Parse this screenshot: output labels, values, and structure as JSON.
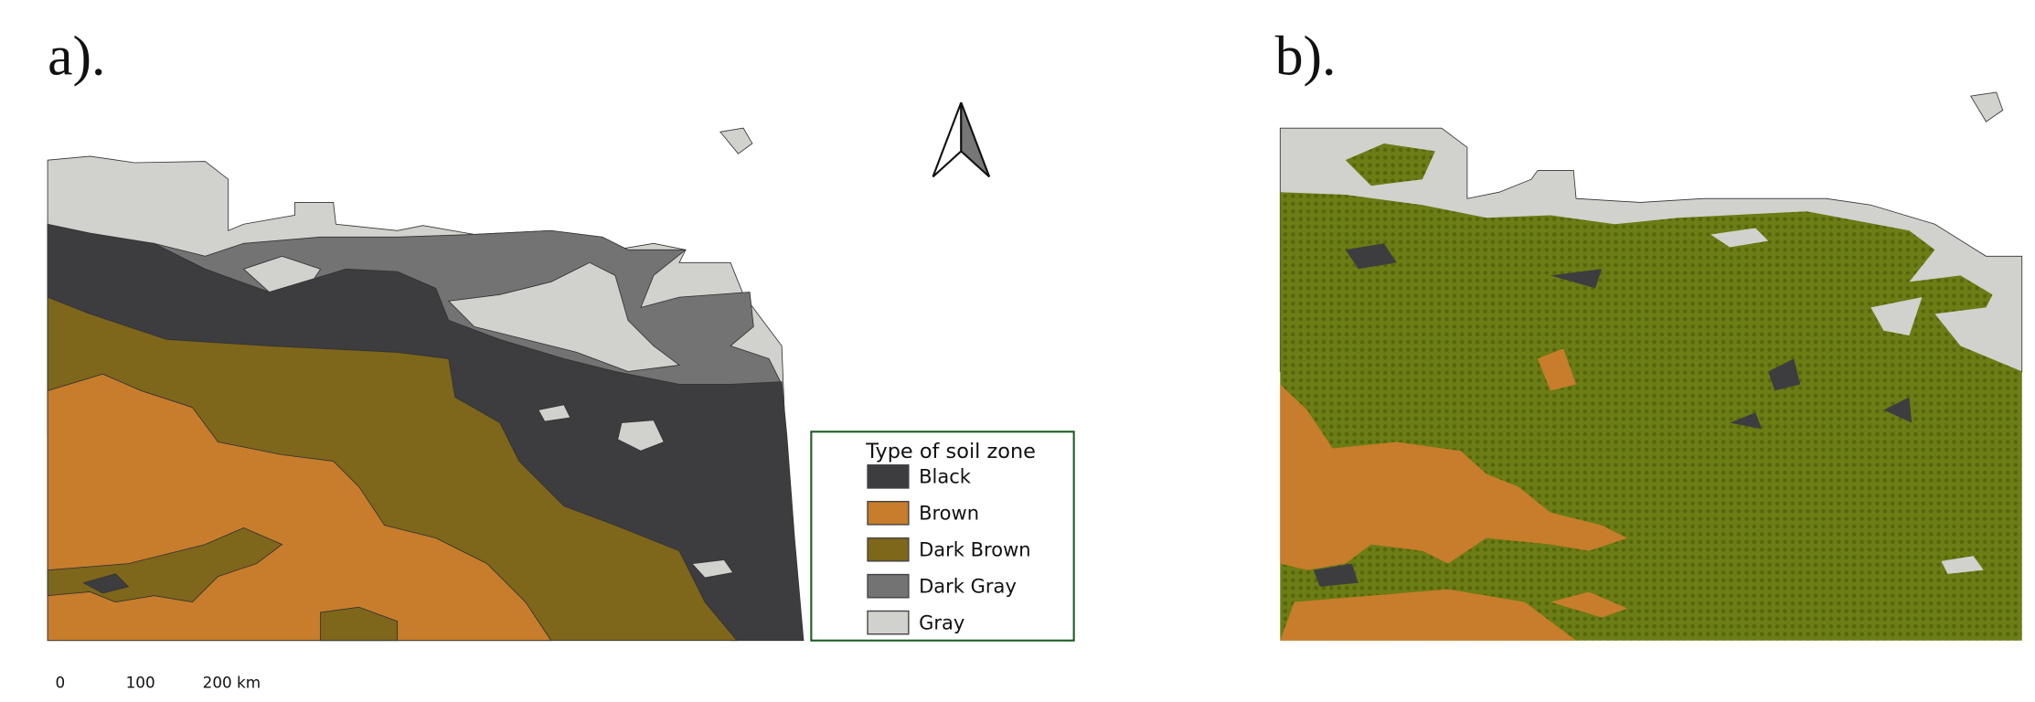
{
  "panels": [
    {
      "label": "a)."
    },
    {
      "label": "b)."
    }
  ],
  "legend": {
    "title": "Type of soil zone",
    "items": [
      {
        "label": "Black",
        "color": "#3d3d40"
      },
      {
        "label": "Brown",
        "color": "#c77d2b"
      },
      {
        "label": "Dark Brown",
        "color": "#7e661b"
      },
      {
        "label": "Dark Gray",
        "color": "#737373"
      },
      {
        "label": "Gray",
        "color": "#d1d1cd"
      }
    ]
  },
  "scale_bar": {
    "ticks": [
      "0",
      "100",
      "200 km"
    ]
  }
}
